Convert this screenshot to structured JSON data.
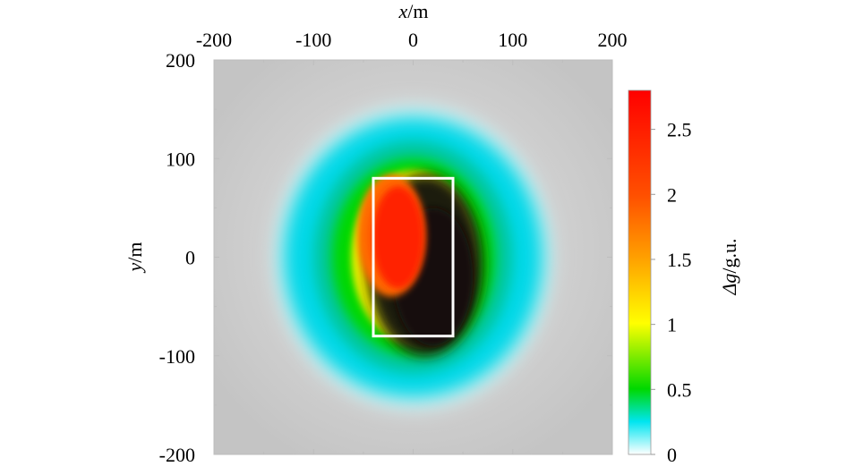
{
  "chart_data": {
    "type": "heatmap",
    "title": "",
    "xlabel_var": "x",
    "xlabel_unit": "/m",
    "ylabel_var": "y",
    "ylabel_unit": "/m",
    "xlim": [
      -200,
      200
    ],
    "ylim": [
      -200,
      200
    ],
    "x_ticks": [
      -200,
      -100,
      0,
      100,
      200
    ],
    "y_ticks": [
      200,
      100,
      0,
      -100,
      -200
    ],
    "x_tick_labels": [
      "-200",
      "-100",
      "0",
      "100",
      "200"
    ],
    "y_tick_labels": [
      "200",
      "100",
      "0",
      "-100",
      "-200"
    ],
    "x_axis_position": "top",
    "grid": false,
    "colorbar": {
      "label_var": "Δg",
      "label_unit": "/g.u.",
      "range": [
        0,
        2.8
      ],
      "ticks": [
        0,
        0.5,
        1,
        1.5,
        2,
        2.5
      ],
      "tick_labels": [
        "0",
        "0.5",
        "1",
        "1.5",
        "2",
        "2.5"
      ],
      "colors": [
        {
          "value": 0,
          "color": "#ffffff"
        },
        {
          "value": 0.25,
          "color": "#00e5f0"
        },
        {
          "value": 0.5,
          "color": "#00d800"
        },
        {
          "value": 1.0,
          "color": "#ffff00"
        },
        {
          "value": 1.5,
          "color": "#ffa000"
        },
        {
          "value": 2.0,
          "color": "#ff5000"
        },
        {
          "value": 2.8,
          "color": "#ff0000"
        }
      ]
    },
    "body_outline": {
      "x_range": [
        -40,
        40
      ],
      "y_range": [
        -80,
        80
      ],
      "color": "#ffffff"
    },
    "anomaly": {
      "peak_value": 2.7,
      "peak_location": [
        -15,
        20
      ],
      "shadow_side": "right",
      "background_color": "#c8c8c8"
    }
  }
}
